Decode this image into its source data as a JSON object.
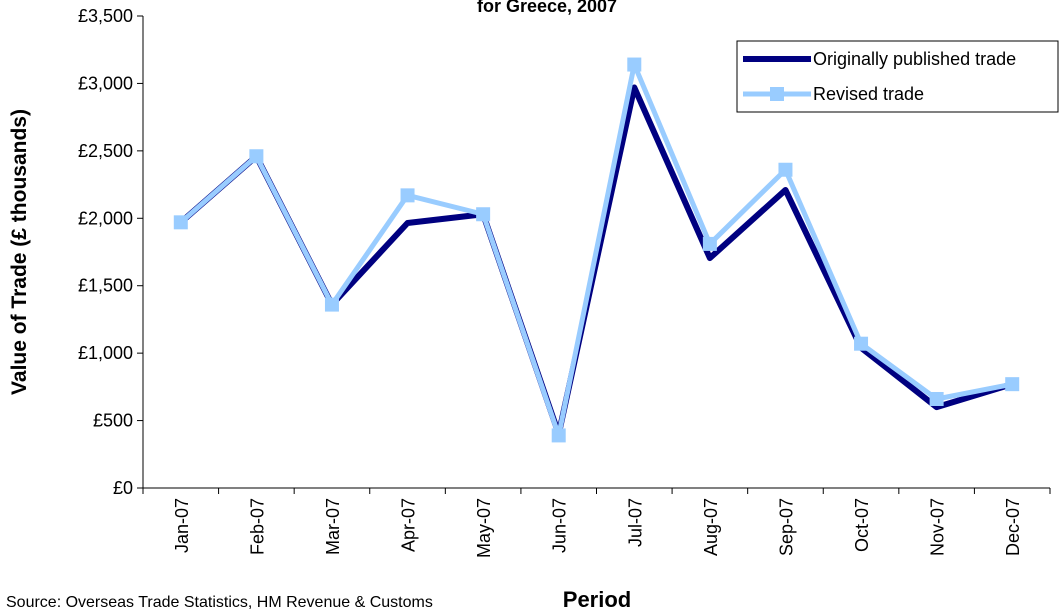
{
  "chart_data": {
    "type": "line",
    "title": "for Greece, 2007",
    "y_label": "Value of Trade (£ thousands)",
    "x_label": "Period",
    "source": "Source: Overseas Trade Statistics, HM Revenue & Customs",
    "categories": [
      "Jan-07",
      "Feb-07",
      "Mar-07",
      "Apr-07",
      "May-07",
      "Jun-07",
      "Jul-07",
      "Aug-07",
      "Sep-07",
      "Oct-07",
      "Nov-07",
      "Dec-07"
    ],
    "series": [
      {
        "name": "Originally published trade",
        "color": "#000080",
        "values": [
          1970,
          2460,
          1360,
          1965,
          2030,
          400,
          2970,
          1705,
          2210,
          1040,
          600,
          770
        ]
      },
      {
        "name": "Revised trade",
        "color": "#99ccff",
        "marker": "square",
        "values": [
          1970,
          2460,
          1360,
          2170,
          2030,
          390,
          3140,
          1810,
          2360,
          1070,
          660,
          770
        ]
      }
    ],
    "ylim": [
      0,
      3500
    ],
    "yticks": [
      {
        "value": 0,
        "label": "£0"
      },
      {
        "value": 500,
        "label": "£500"
      },
      {
        "value": 1000,
        "label": "£1,000"
      },
      {
        "value": 1500,
        "label": "£1,500"
      },
      {
        "value": 2000,
        "label": "£2,000"
      },
      {
        "value": 2500,
        "label": "£2,500"
      },
      {
        "value": 3000,
        "label": "£3,000"
      },
      {
        "value": 3500,
        "label": "£3,500"
      }
    ],
    "grid": false,
    "legend": "top-right"
  }
}
